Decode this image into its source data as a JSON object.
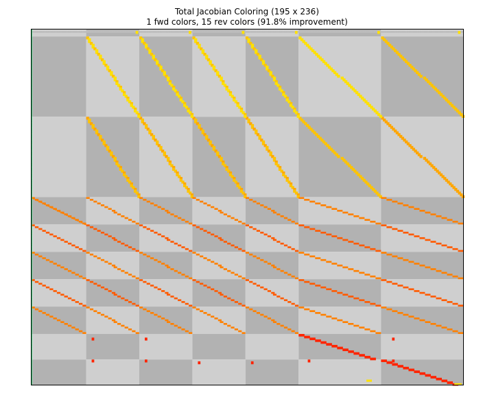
{
  "chart_data": {
    "type": "heatmap",
    "title": "Total Jacobian Coloring (195 x 236)",
    "subtitle": "1 fwd colors, 15 rev colors (91.8% improvement)",
    "n_rows": 195,
    "n_cols": 236,
    "fwd_colors": 1,
    "rev_colors": 15,
    "improvement_percent": 91.8,
    "block_shading": {
      "dark": "#b2b2b2",
      "light": "#cfcfcf"
    },
    "palette": {
      "fwd": "#22d36c",
      "rev": [
        "#ffe100",
        "#ffc400",
        "#ffa600",
        "#ff8000",
        "#ff5a00",
        "#ff2400"
      ]
    }
  }
}
